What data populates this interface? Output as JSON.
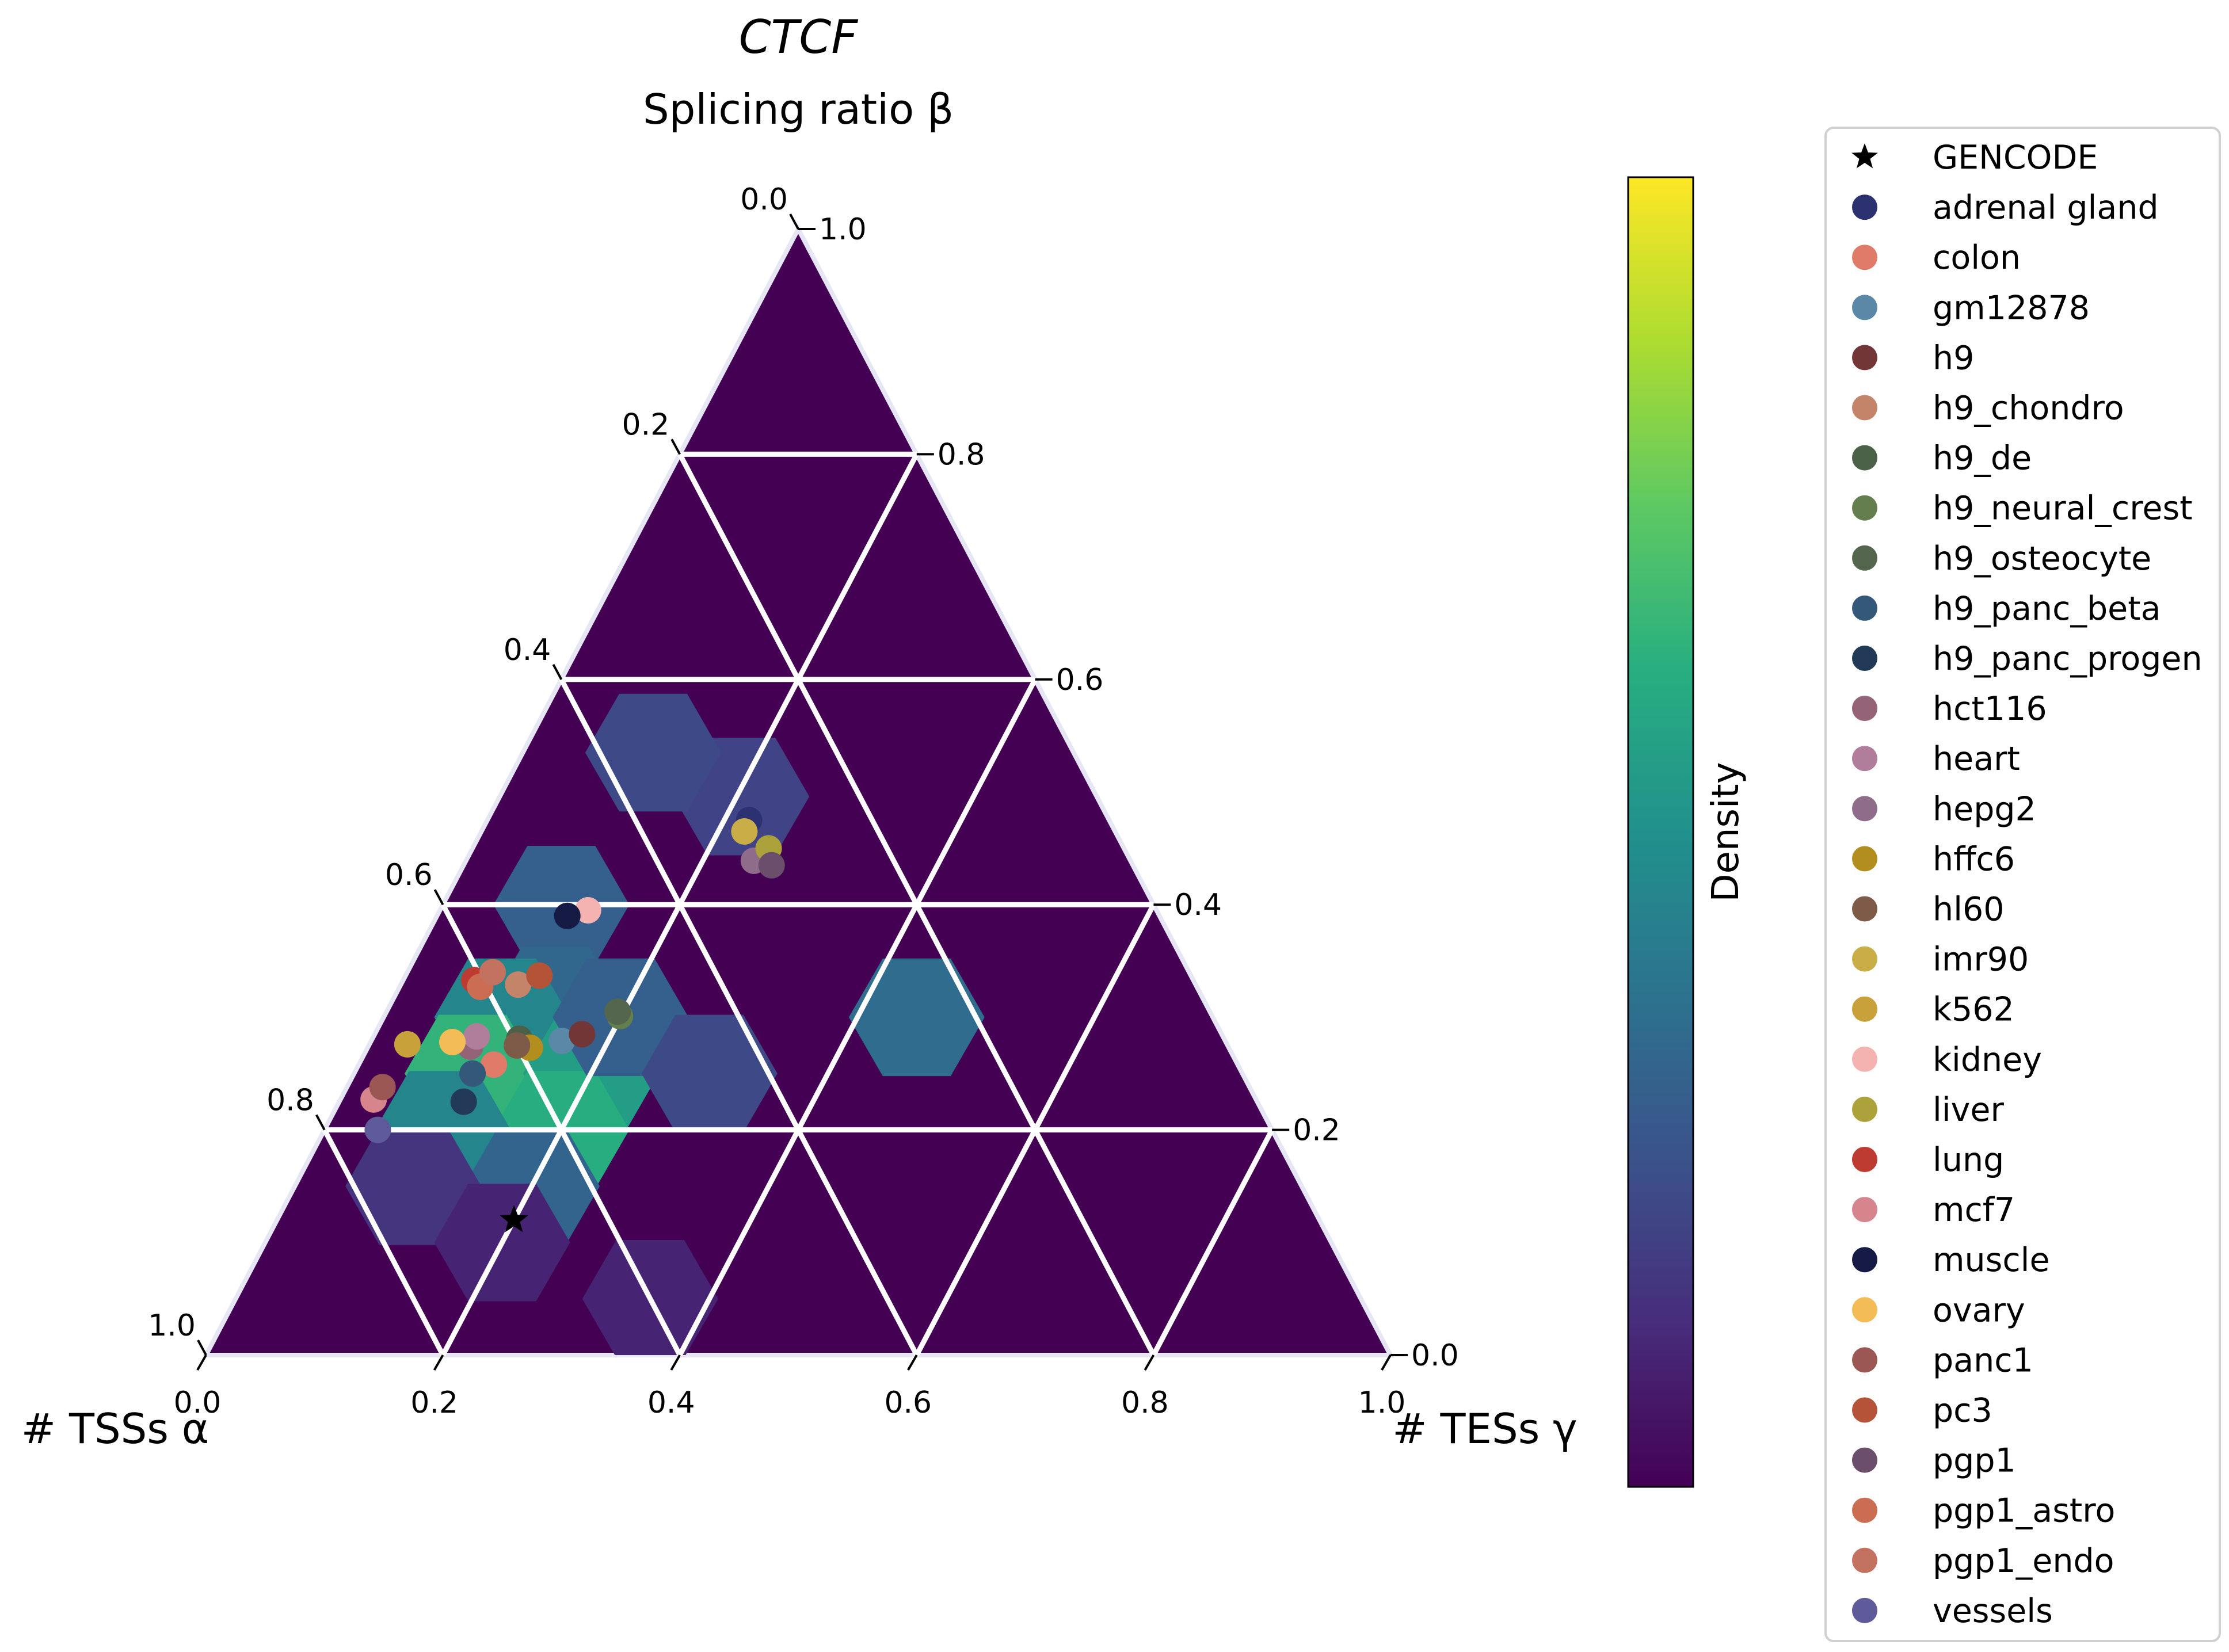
{
  "chart_data": {
    "type": "scatter",
    "subtype": "ternary",
    "title": "CTCF",
    "axes": {
      "top": {
        "label": "Splicing ratio β",
        "ticks": [
          "0.0",
          "0.2",
          "0.4",
          "0.6",
          "0.8",
          "1.0"
        ]
      },
      "right_ticks": [
        "1.0",
        "0.8",
        "0.6",
        "0.4",
        "0.2",
        "0.0"
      ],
      "bottom": {
        "ticks": [
          "0.0",
          "0.2",
          "0.4",
          "0.6",
          "0.8",
          "1.0"
        ]
      },
      "left_label": "# TSSs α",
      "right_label": "# TESs γ",
      "range": [
        0,
        1
      ],
      "grid": true,
      "grid_step": 0.2
    },
    "colorbar": {
      "label": "Density",
      "colormap": "viridis"
    },
    "density_hexes": [
      {
        "a": 0.3,
        "b": 0.496,
        "g": 0.204,
        "level": 0.2
      },
      {
        "a": 0.355,
        "b": 0.535,
        "g": 0.11,
        "level": 0.22
      },
      {
        "a": 0.5,
        "b": 0.4,
        "g": 0.1,
        "level": 0.3
      },
      {
        "a": 0.55,
        "b": 0.31,
        "g": 0.14,
        "level": 0.33
      },
      {
        "a": 0.6,
        "b": 0.3,
        "g": 0.1,
        "level": 0.45
      },
      {
        "a": 0.65,
        "b": 0.25,
        "g": 0.1,
        "level": 0.65
      },
      {
        "a": 0.55,
        "b": 0.25,
        "g": 0.2,
        "level": 0.55
      },
      {
        "a": 0.6,
        "b": 0.2,
        "g": 0.2,
        "level": 0.62
      },
      {
        "a": 0.7,
        "b": 0.2,
        "g": 0.1,
        "level": 0.45
      },
      {
        "a": 0.5,
        "b": 0.3,
        "g": 0.2,
        "level": 0.3
      },
      {
        "a": 0.65,
        "b": 0.15,
        "g": 0.2,
        "level": 0.32
      },
      {
        "a": 0.75,
        "b": 0.15,
        "g": 0.1,
        "level": 0.15
      },
      {
        "a": 0.45,
        "b": 0.25,
        "g": 0.3,
        "level": 0.22
      },
      {
        "a": 0.7,
        "b": 0.1,
        "g": 0.2,
        "level": 0.1
      },
      {
        "a": 0.6,
        "b": 0.05,
        "g": 0.35,
        "level": 0.1
      },
      {
        "a": 0.25,
        "b": 0.3,
        "g": 0.45,
        "level": 0.35
      }
    ],
    "series": [
      {
        "name": "GENCODE",
        "color": "#000000",
        "marker": "star",
        "points": [
          [
            0.68,
            0.12,
            0.2
          ]
        ]
      },
      {
        "name": "adrenal gland",
        "color": "#2c3172",
        "marker": "circle",
        "points": [
          [
            0.304,
            0.475,
            0.221
          ]
        ]
      },
      {
        "name": "colon",
        "color": "#e07b6a",
        "marker": "circle",
        "points": [
          [
            0.628,
            0.258,
            0.114
          ]
        ]
      },
      {
        "name": "gm12878",
        "color": "#5b88a6",
        "marker": "circle",
        "points": [
          [
            0.56,
            0.279,
            0.161
          ]
        ]
      },
      {
        "name": "h9",
        "color": "#733637",
        "marker": "circle",
        "points": [
          [
            0.54,
            0.285,
            0.175
          ]
        ]
      },
      {
        "name": "h9_chondro",
        "color": "#c4846a",
        "marker": "circle",
        "points": [
          [
            0.572,
            0.329,
            0.099
          ]
        ]
      },
      {
        "name": "h9_de",
        "color": "#4a6148",
        "marker": "circle",
        "points": [
          [
            0.595,
            0.281,
            0.124
          ]
        ]
      },
      {
        "name": "h9_neural_crest",
        "color": "#657e4e",
        "marker": "circle",
        "points": [
          [
            0.5,
            0.301,
            0.199
          ]
        ]
      },
      {
        "name": "h9_osteocyte",
        "color": "#54664e",
        "marker": "circle",
        "points": [
          [
            0.5,
            0.305,
            0.195
          ]
        ]
      },
      {
        "name": "h9_panc_beta",
        "color": "#335879",
        "marker": "circle",
        "points": [
          [
            0.65,
            0.25,
            0.1
          ]
        ]
      },
      {
        "name": "h9_panc_progen",
        "color": "#233958",
        "marker": "circle",
        "points": [
          [
            0.67,
            0.225,
            0.105
          ]
        ]
      },
      {
        "name": "hct116",
        "color": "#946377",
        "marker": "circle",
        "points": [
          [
            0.64,
            0.274,
            0.086
          ]
        ]
      },
      {
        "name": "heart",
        "color": "#b07e9b",
        "marker": "circle",
        "points": [
          [
            0.63,
            0.283,
            0.087
          ]
        ]
      },
      {
        "name": "hepg2",
        "color": "#8f6d8a",
        "marker": "circle",
        "points": [
          [
            0.318,
            0.439,
            0.243
          ]
        ]
      },
      {
        "name": "hffc6",
        "color": "#b18e1d",
        "marker": "circle",
        "points": [
          [
            0.59,
            0.273,
            0.137
          ]
        ]
      },
      {
        "name": "hl60",
        "color": "#7e5a48",
        "marker": "circle",
        "points": [
          [
            0.6,
            0.275,
            0.125
          ]
        ]
      },
      {
        "name": "imr90",
        "color": "#c9ae48",
        "marker": "circle",
        "points": [
          [
            0.313,
            0.465,
            0.222
          ]
        ]
      },
      {
        "name": "k562",
        "color": "#c9a13a",
        "marker": "circle",
        "points": [
          [
            0.692,
            0.276,
            0.032
          ]
        ]
      },
      {
        "name": "kidney",
        "color": "#f4b3b1",
        "marker": "circle",
        "points": [
          [
            0.48,
            0.395,
            0.125
          ]
        ]
      },
      {
        "name": "liver",
        "color": "#aba23b",
        "marker": "circle",
        "points": [
          [
            0.3,
            0.45,
            0.25
          ]
        ]
      },
      {
        "name": "lung",
        "color": "#bd3b30",
        "marker": "circle",
        "points": [
          [
            0.607,
            0.333,
            0.06
          ]
        ]
      },
      {
        "name": "mcf7",
        "color": "#d7858c",
        "marker": "circle",
        "points": [
          [
            0.745,
            0.227,
            0.028
          ]
        ]
      },
      {
        "name": "muscle",
        "color": "#151b45",
        "marker": "circle",
        "points": [
          [
            0.5,
            0.39,
            0.11
          ]
        ]
      },
      {
        "name": "ovary",
        "color": "#f3bc56",
        "marker": "circle",
        "points": [
          [
            0.653,
            0.278,
            0.069
          ]
        ]
      },
      {
        "name": "panc1",
        "color": "#9b5753",
        "marker": "circle",
        "points": [
          [
            0.732,
            0.238,
            0.03
          ]
        ]
      },
      {
        "name": "pc3",
        "color": "#b45338",
        "marker": "circle",
        "points": [
          [
            0.55,
            0.337,
            0.113
          ]
        ]
      },
      {
        "name": "pgp1",
        "color": "#6a4e6b",
        "marker": "circle",
        "points": [
          [
            0.305,
            0.435,
            0.26
          ]
        ]
      },
      {
        "name": "pgp1_astro",
        "color": "#cb6d52",
        "marker": "circle",
        "points": [
          [
            0.605,
            0.327,
            0.068
          ]
        ]
      },
      {
        "name": "pgp1_endo",
        "color": "#c2725f",
        "marker": "circle",
        "points": [
          [
            0.588,
            0.34,
            0.072
          ]
        ]
      },
      {
        "name": "vessels",
        "color": "#5f5a99",
        "marker": "circle",
        "points": [
          [
            0.755,
            0.2,
            0.045
          ]
        ]
      }
    ]
  }
}
